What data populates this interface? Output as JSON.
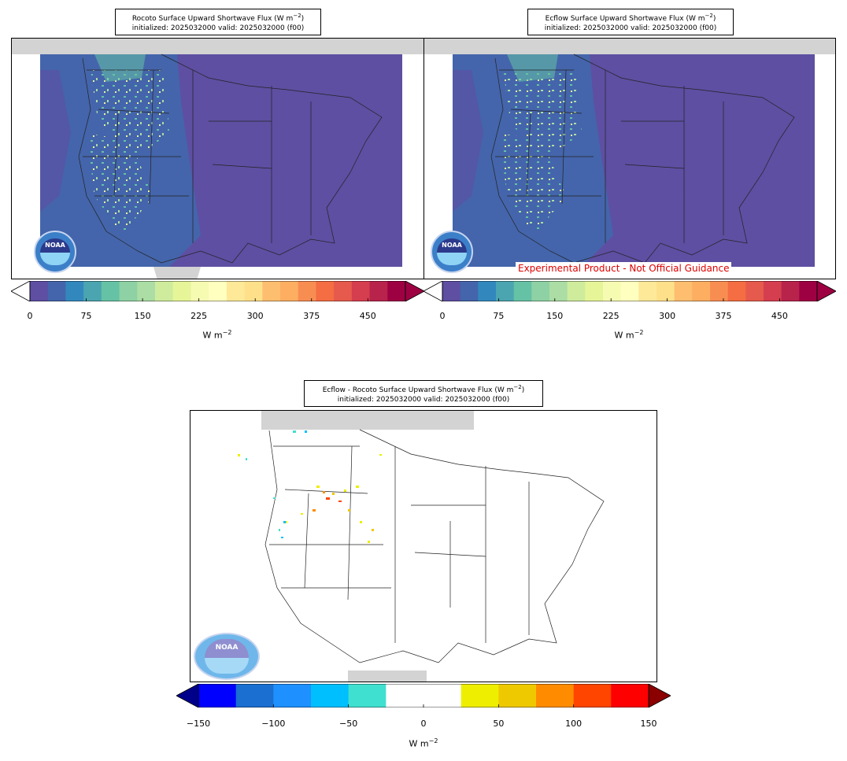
{
  "panels": [
    {
      "title_line1": "Rocoto Surface Upward Shortwave Flux (W m",
      "title_exp": "−2",
      "title_line1_end": ")",
      "title_line2": "initialized: 2025032000 valid: 2025032000 (f00)"
    },
    {
      "title_line1": "Ecflow Surface Upward Shortwave Flux (W m",
      "title_exp": "−2",
      "title_line1_end": ")",
      "title_line2": "initialized: 2025032000 valid: 2025032000 (f00)"
    },
    {
      "title_line1": "Ecflow - Rocoto Surface Upward Shortwave Flux (W m",
      "title_exp": "−2",
      "title_line1_end": ")",
      "title_line2": "initialized: 2025032000 valid: 2025032000 (f00)"
    }
  ],
  "watermark": "Experimental Product - Not Official Guidance",
  "logo_text": "NOAA",
  "colorbar_flux": {
    "unit": "W m",
    "unit_exp": "−2",
    "ticks": [
      "0",
      "75",
      "150",
      "225",
      "300",
      "375",
      "450"
    ],
    "tick_values": [
      0,
      75,
      150,
      225,
      300,
      375,
      450
    ],
    "range": [
      0,
      500
    ],
    "colors": [
      "#5e4fa2",
      "#4465ab",
      "#3288bd",
      "#4ba5b1",
      "#66c2a5",
      "#8ed1a4",
      "#abdda4",
      "#cfec9d",
      "#e6f598",
      "#f6fbb2",
      "#ffffbf",
      "#fee999",
      "#fee08b",
      "#fdbe6f",
      "#fdae61",
      "#f88d52",
      "#f46d43",
      "#e55a4c",
      "#d53e4f",
      "#b8234c",
      "#9e0142"
    ]
  },
  "colorbar_diff": {
    "unit": "W m",
    "unit_exp": "−2",
    "ticks": [
      "−150",
      "−100",
      "−50",
      "0",
      "50",
      "100",
      "150"
    ],
    "tick_values": [
      -150,
      -100,
      -50,
      0,
      50,
      100,
      150
    ],
    "range": [
      -150,
      150
    ],
    "under_color": "#00008b",
    "over_color": "#8b0000",
    "colors": [
      "#0000ff",
      "#1a6fd0",
      "#1e90ff",
      "#00bfff",
      "#40e0d0",
      "#ffffff",
      "#ffffff",
      "#eeee00",
      "#eec900",
      "#ff8c00",
      "#ff4500",
      "#ff0000"
    ]
  }
}
